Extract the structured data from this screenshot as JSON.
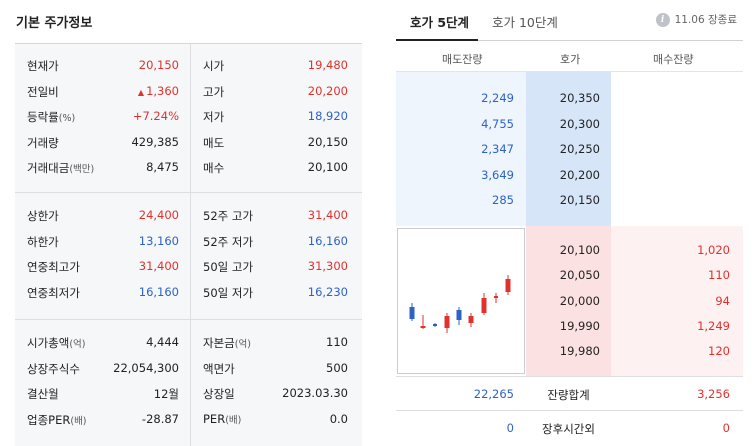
{
  "left": {
    "title": "기본 주가정보",
    "g1": [
      {
        "l1": "현재가",
        "v1": "20,150",
        "c1": "red",
        "l2": "시가",
        "v2": "19,480",
        "c2": "red"
      },
      {
        "l1": "전일비",
        "v1": "1,360",
        "c1": "red",
        "arrow": "▲",
        "l2": "고가",
        "v2": "20,200",
        "c2": "red"
      },
      {
        "l1": "등락률",
        "l1s": "(%)",
        "v1": "+7.24%",
        "c1": "red",
        "l2": "저가",
        "v2": "18,920",
        "c2": "blue"
      },
      {
        "l1": "거래량",
        "v1": "429,385",
        "c1": "dark",
        "l2": "매도",
        "v2": "20,150",
        "c2": "dark"
      },
      {
        "l1": "거래대금",
        "l1s": "(백만)",
        "v1": "8,475",
        "c1": "dark",
        "l2": "매수",
        "v2": "20,100",
        "c2": "dark"
      }
    ],
    "g2": [
      {
        "l1": "상한가",
        "v1": "24,400",
        "c1": "red",
        "l2": "52주 고가",
        "v2": "31,400",
        "c2": "red"
      },
      {
        "l1": "하한가",
        "v1": "13,160",
        "c1": "blue",
        "l2": "52주 저가",
        "v2": "16,160",
        "c2": "blue"
      },
      {
        "l1": "연중최고가",
        "v1": "31,400",
        "c1": "red",
        "l2": "50일 고가",
        "v2": "31,300",
        "c2": "red"
      },
      {
        "l1": "연중최저가",
        "v1": "16,160",
        "c1": "blue",
        "l2": "50일 저가",
        "v2": "16,230",
        "c2": "blue"
      }
    ],
    "g3": [
      {
        "l1": "시가총액",
        "l1s": "(억)",
        "v1": "4,444",
        "c1": "dark",
        "l2": "자본금",
        "l2s": "(억)",
        "v2": "110",
        "c2": "dark"
      },
      {
        "l1": "상장주식수",
        "v1": "22,054,300",
        "c1": "dark",
        "l2": "액면가",
        "v2": "500",
        "c2": "dark"
      },
      {
        "l1": "결산월",
        "v1": "12월",
        "c1": "dark",
        "l2": "상장일",
        "v2": "2023.03.30",
        "c2": "dark"
      },
      {
        "l1": "업종PER",
        "l1s": "(배)",
        "v1": "-28.87",
        "c1": "dark",
        "l2": "PER",
        "l2s": "(배)",
        "v2": "0.0",
        "c2": "dark"
      }
    ]
  },
  "right": {
    "tab_active": "호가 5단계",
    "tab_inactive": "호가 10단계",
    "info_icon": "i",
    "info_text": "11.06 장종료",
    "headers": [
      "매도잔량",
      "호가",
      "매수잔량"
    ],
    "asks": [
      {
        "qty": "2,249",
        "price": "20,350"
      },
      {
        "qty": "4,755",
        "price": "20,300"
      },
      {
        "qty": "2,347",
        "price": "20,250"
      },
      {
        "qty": "3,649",
        "price": "20,200"
      },
      {
        "qty": "285",
        "price": "20,150"
      }
    ],
    "bids": [
      {
        "price": "20,100",
        "qty": "1,020"
      },
      {
        "price": "20,050",
        "qty": "110"
      },
      {
        "price": "20,000",
        "qty": "94"
      },
      {
        "price": "19,990",
        "qty": "1,249"
      },
      {
        "price": "19,980",
        "qty": "120"
      }
    ],
    "total": {
      "ask": "22,265",
      "label": "잔량합계",
      "bid": "3,256"
    },
    "after": {
      "ask": "0",
      "label": "장후시간외",
      "bid": "0"
    }
  },
  "colors": {
    "up": "#e0322d",
    "down": "#2f62c6"
  }
}
